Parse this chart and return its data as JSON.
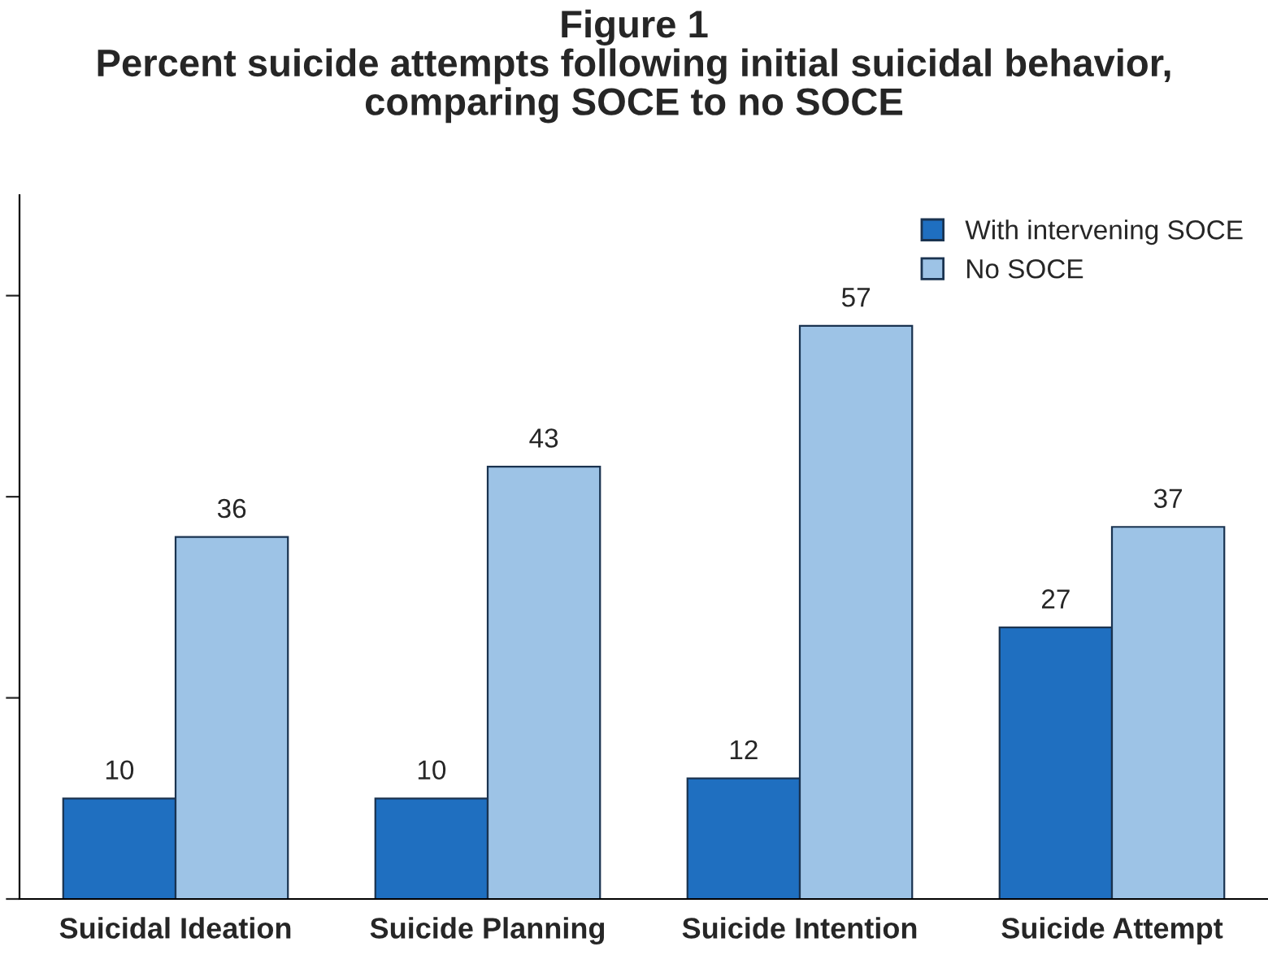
{
  "chart_data": {
    "type": "bar",
    "title": "Figure 1\nPercent suicide attempts following initial suicidal behavior,\ncomparing SOCE to no SOCE",
    "categories": [
      "Suicidal Ideation",
      "Suicide Planning",
      "Suicide Intention",
      "Suicide Attempt"
    ],
    "series": [
      {
        "name": "With intervening SOCE",
        "color": "#1f6fc0",
        "values": [
          10,
          10,
          12,
          27
        ]
      },
      {
        "name": "No SOCE",
        "color": "#9dc3e6",
        "values": [
          36,
          43,
          57,
          37
        ]
      }
    ],
    "ylim": [
      0,
      70
    ],
    "yticks": [
      {
        "value": 0,
        "label": null
      },
      {
        "value": 20,
        "label": null
      },
      {
        "value": 40,
        "label": null
      },
      {
        "value": 60,
        "label": null
      }
    ],
    "data_labels": true,
    "legend": "top right",
    "grid": false
  }
}
